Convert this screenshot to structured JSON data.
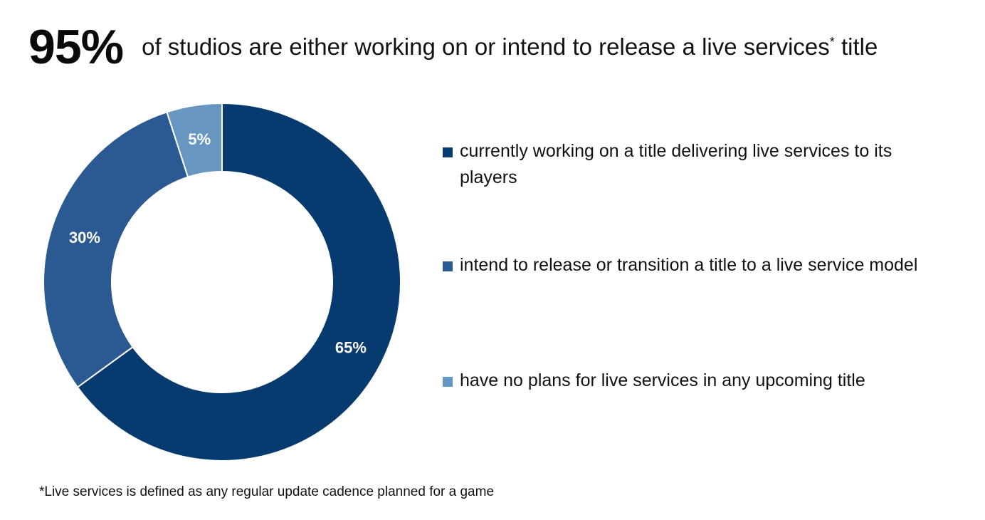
{
  "headline": {
    "big_number": "95%",
    "text": "of studios are either working on or intend to release a live services",
    "asterisk": "*",
    "text_end": " title"
  },
  "chart_data": {
    "type": "pie",
    "style": "donut",
    "categories": [
      "currently working on a title delivering live services to its players",
      "intend to release or transition a title to a live service model",
      "have no plans for live services in any upcoming title"
    ],
    "values": [
      65,
      30,
      5
    ],
    "data_labels": [
      "65%",
      "30%",
      "5%"
    ],
    "colors": [
      "#073a6f",
      "#2b5a92",
      "#6797c1"
    ],
    "legend_placement": "right"
  },
  "legend": {
    "items": [
      {
        "label": "currently working on a title delivering live services to its players",
        "color": "#073a6f"
      },
      {
        "label": "intend to release or transition a title to a live service model",
        "color": "#2b5a92"
      },
      {
        "label": "have no plans for live services in any upcoming title",
        "color": "#6797c1"
      }
    ]
  },
  "footnote": "*Live services is defined as any regular update cadence planned for a game"
}
